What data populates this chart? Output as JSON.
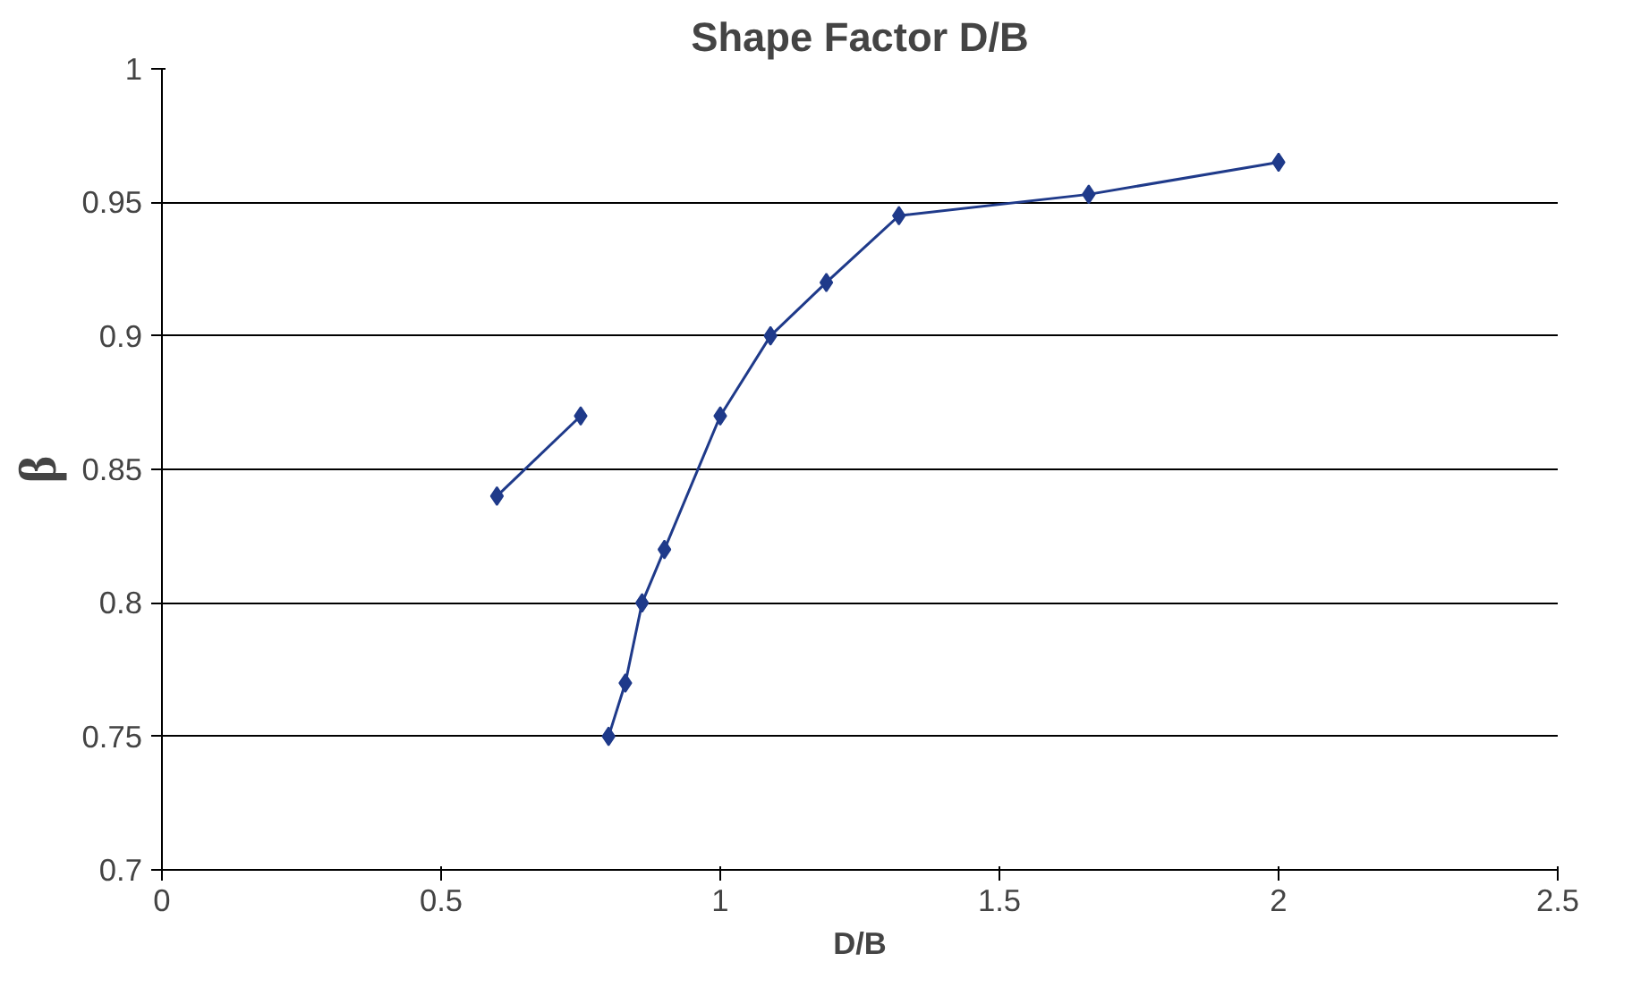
{
  "chart_data": {
    "type": "line",
    "title": "Shape Factor D/B",
    "xlabel": "D/B",
    "ylabel": "β",
    "series": [
      {
        "color": "#1f3a8a",
        "x": [
          0.6,
          0.75
        ],
        "values": [
          0.84,
          0.87
        ]
      },
      {
        "color": "#1f3a8a",
        "x": [
          0.8,
          0.83,
          0.86,
          0.9,
          1.0,
          1.09,
          1.19,
          1.32,
          1.66,
          2.0
        ],
        "values": [
          0.75,
          0.77,
          0.8,
          0.82,
          0.87,
          0.9,
          0.92,
          0.945,
          0.953,
          0.965
        ]
      }
    ],
    "xlim": [
      0,
      2.5
    ],
    "xticks": [
      0,
      0.5,
      1,
      1.5,
      2,
      2.5
    ],
    "ylim": [
      0.7,
      1
    ],
    "yticks": [
      0.7,
      0.75,
      0.8,
      0.85,
      0.9,
      0.95,
      1
    ],
    "grid": "y",
    "marker": "diamond",
    "line_style": "solid"
  }
}
